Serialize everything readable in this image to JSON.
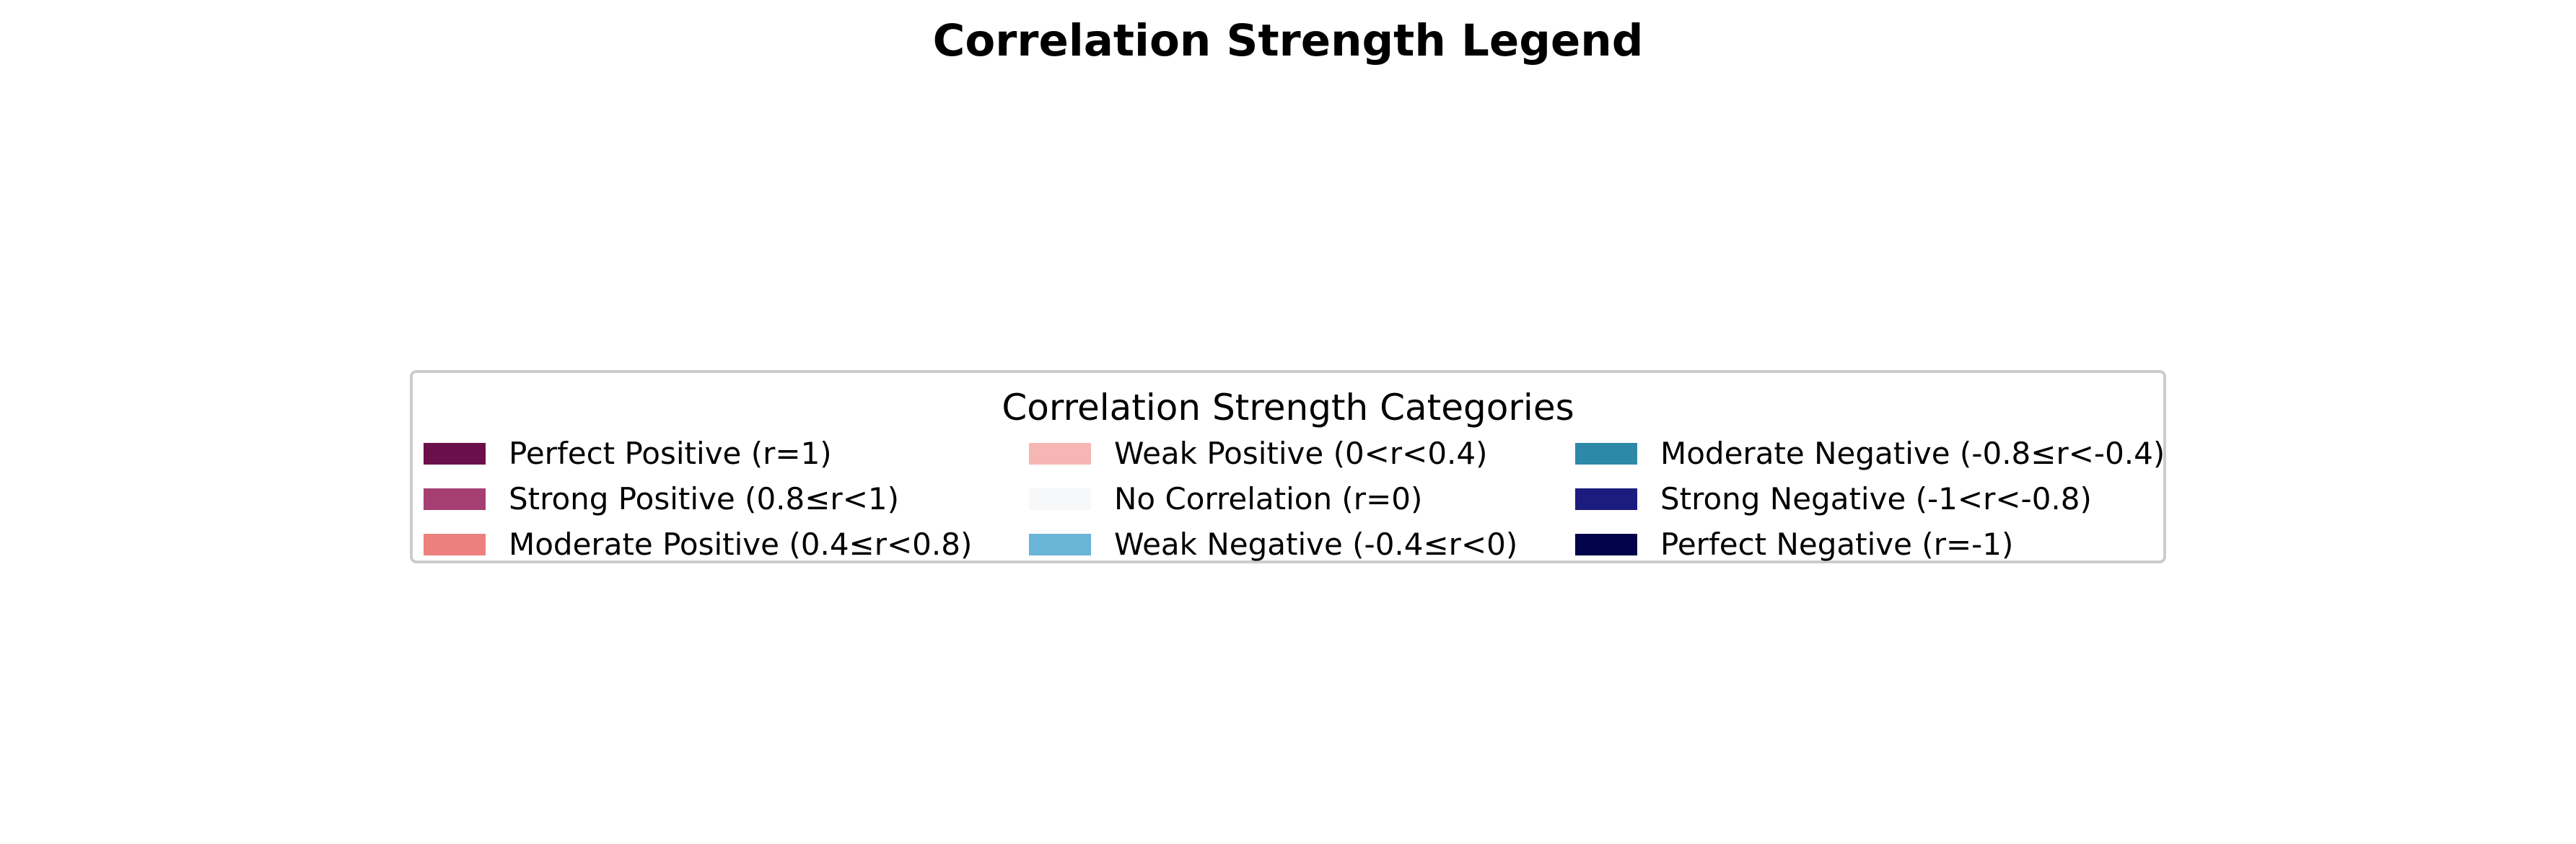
{
  "chart_data": {
    "type": "legend",
    "title": "Correlation Strength Legend",
    "legend": {
      "title": "Correlation Strength Categories",
      "columns": 3,
      "entries": [
        {
          "label": "Perfect Positive (r=1)",
          "color": "#6b0f4a"
        },
        {
          "label": "Strong Positive (0.8≤r<1)",
          "color": "#a53f72"
        },
        {
          "label": "Moderate Positive (0.4≤r<0.8)",
          "color": "#eb807d"
        },
        {
          "label": "Weak Positive (0<r<0.4)",
          "color": "#f6b6b4"
        },
        {
          "label": "No Correlation (r=0)",
          "color": "#f7f8fa"
        },
        {
          "label": "Weak Negative (-0.4≤r<0)",
          "color": "#6ab4d8"
        },
        {
          "label": "Moderate Negative (-0.8≤r<-0.4)",
          "color": "#2e89a9"
        },
        {
          "label": "Strong Negative (-1<r<-0.8)",
          "color": "#1c1c7e"
        },
        {
          "label": "Perfect Negative (r=-1)",
          "color": "#02034a"
        }
      ]
    }
  }
}
